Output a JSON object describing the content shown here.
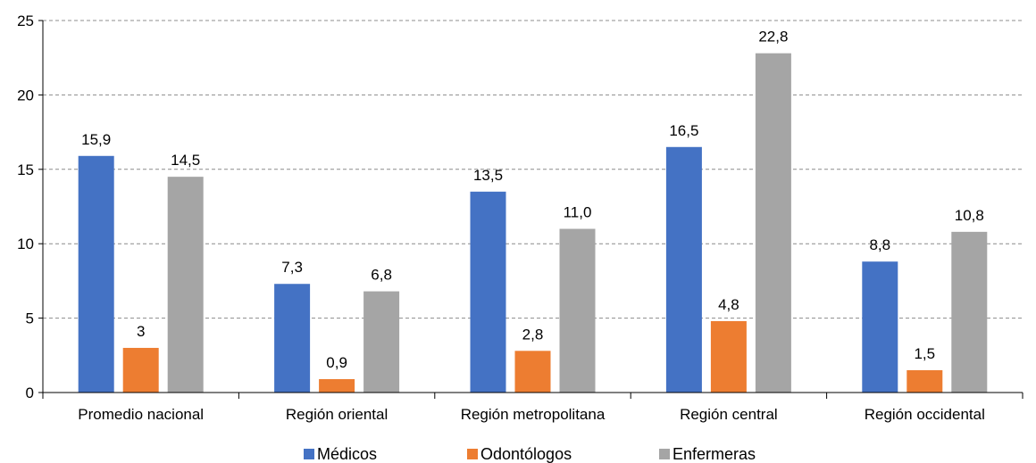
{
  "chart_data": {
    "type": "bar",
    "categories": [
      "Promedio nacional",
      "Región oriental",
      "Región metropolitana",
      "Región central",
      "Región occidental"
    ],
    "series": [
      {
        "name": "Médicos",
        "color": "#4472C4",
        "values": [
          15.9,
          7.3,
          13.5,
          16.5,
          8.8
        ],
        "labels": [
          "15,9",
          "7,3",
          "13,5",
          "16,5",
          "8,8"
        ]
      },
      {
        "name": "Odontólogos",
        "color": "#ED7D31",
        "values": [
          3,
          0.9,
          2.8,
          4.8,
          1.5
        ],
        "labels": [
          "3",
          "0,9",
          "2,8",
          "4,8",
          "1,5"
        ]
      },
      {
        "name": "Enfermeras",
        "color": "#A5A5A5",
        "values": [
          14.5,
          6.8,
          11.0,
          22.8,
          10.8
        ],
        "labels": [
          "14,5",
          "6,8",
          "11,0",
          "22,8",
          "10,8"
        ]
      }
    ],
    "ylim": [
      0,
      25
    ],
    "yticks": [
      0,
      5,
      10,
      15,
      20,
      25
    ],
    "grid": true,
    "grid_style": "dashed",
    "legend_position": "bottom"
  }
}
